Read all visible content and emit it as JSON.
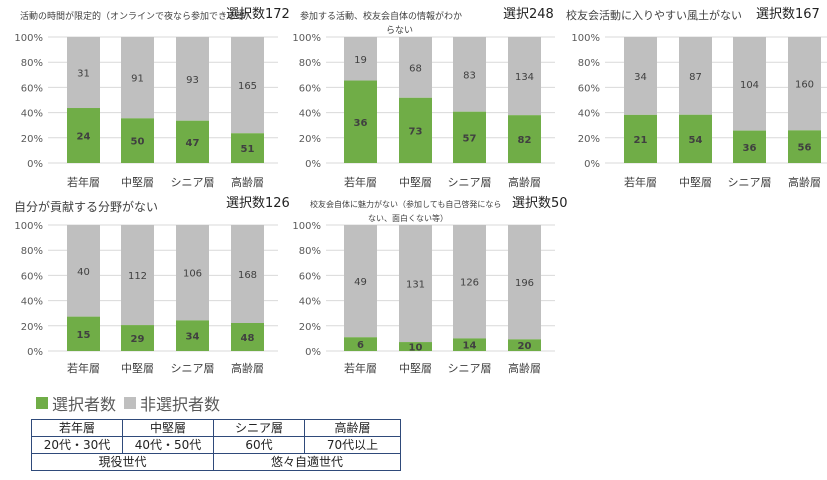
{
  "colors": {
    "selected": "#70AD47",
    "unselected": "#BFBFBF"
  },
  "chart_data": [
    {
      "type": "bar",
      "stacked": "percent",
      "title": "活動の時間が限定的（オンラインで夜なら参加できる等）",
      "count_label": "選択数172",
      "categories": [
        "若年層",
        "中堅層",
        "シニア層",
        "高齢層"
      ],
      "y_ticks": [
        "0%",
        "20%",
        "40%",
        "60%",
        "80%",
        "100%"
      ],
      "series": [
        {
          "name": "選択者数",
          "values": [
            24,
            50,
            47,
            51
          ]
        },
        {
          "name": "非選択者数",
          "values": [
            31,
            91,
            93,
            165
          ]
        }
      ]
    },
    {
      "type": "bar",
      "stacked": "percent",
      "title": "参加する活動、校友会自体の情報がわからない",
      "count_label": "選択248",
      "categories": [
        "若年層",
        "中堅層",
        "シニア層",
        "高齢層"
      ],
      "y_ticks": [
        "0%",
        "20%",
        "40%",
        "60%",
        "80%",
        "100%"
      ],
      "series": [
        {
          "name": "選択者数",
          "values": [
            36,
            73,
            57,
            82
          ]
        },
        {
          "name": "非選択者数",
          "values": [
            19,
            68,
            83,
            134
          ]
        }
      ]
    },
    {
      "type": "bar",
      "stacked": "percent",
      "title": "校友会活動に入りやすい風土がない",
      "count_label": "選択数167",
      "categories": [
        "若年層",
        "中堅層",
        "シニア層",
        "高齢層"
      ],
      "y_ticks": [
        "0%",
        "20%",
        "40%",
        "60%",
        "80%",
        "100%"
      ],
      "series": [
        {
          "name": "選択者数",
          "values": [
            21,
            54,
            36,
            56
          ]
        },
        {
          "name": "非選択者数",
          "values": [
            34,
            87,
            104,
            160
          ]
        }
      ]
    },
    {
      "type": "bar",
      "stacked": "percent",
      "title": "自分が貢献する分野がない",
      "count_label": "選択数126",
      "categories": [
        "若年層",
        "中堅層",
        "シニア層",
        "高齢層"
      ],
      "y_ticks": [
        "0%",
        "20%",
        "40%",
        "60%",
        "80%",
        "100%"
      ],
      "series": [
        {
          "name": "選択者数",
          "values": [
            15,
            29,
            34,
            48
          ]
        },
        {
          "name": "非選択者数",
          "values": [
            40,
            112,
            106,
            168
          ]
        }
      ]
    },
    {
      "type": "bar",
      "stacked": "percent",
      "title": "校友会自体に魅力がない（参加しても自己啓発にならない、面白くない等）",
      "count_label": "選択数50",
      "categories": [
        "若年層",
        "中堅層",
        "シニア層",
        "高齢層"
      ],
      "y_ticks": [
        "0%",
        "20%",
        "40%",
        "60%",
        "80%",
        "100%"
      ],
      "series": [
        {
          "name": "選択者数",
          "values": [
            6,
            10,
            14,
            20
          ]
        },
        {
          "name": "非選択者数",
          "values": [
            49,
            131,
            126,
            196
          ]
        }
      ]
    }
  ],
  "legend": {
    "selected_label": "選択者数",
    "unselected_label": "非選択者数"
  },
  "age_table": {
    "headers": [
      "若年層",
      "中堅層",
      "シニア層",
      "高齢層"
    ],
    "ranges": [
      "20代・30代",
      "40代・50代",
      "60代",
      "70代以上"
    ],
    "groups": [
      "現役世代",
      "悠々自適世代"
    ]
  }
}
